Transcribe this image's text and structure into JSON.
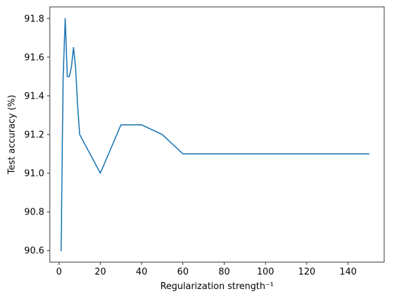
{
  "chart_data": {
    "type": "line",
    "xlabel": "Regularization strength⁻¹",
    "ylabel": "Test accuracy (%)",
    "xlim": [
      -4.5,
      157.5
    ],
    "ylim": [
      90.54,
      91.86
    ],
    "xticks": [
      0,
      20,
      40,
      60,
      80,
      100,
      120,
      140
    ],
    "yticks": [
      90.6,
      90.8,
      91.0,
      91.2,
      91.4,
      91.6,
      91.8
    ],
    "ytick_labels": [
      "90.6",
      "90.8",
      "91.0",
      "91.2",
      "91.4",
      "91.6",
      "91.8"
    ],
    "grid": false,
    "series": [
      {
        "color": "#1f77b4",
        "x": [
          1,
          2,
          3,
          4,
          5,
          6,
          7,
          8,
          9,
          10,
          20,
          30,
          40,
          50,
          60,
          70,
          80,
          90,
          100,
          110,
          120,
          130,
          140,
          150
        ],
        "y": [
          90.6,
          91.5,
          91.8,
          91.5,
          91.5,
          91.55,
          91.65,
          91.55,
          91.35,
          91.2,
          91.0,
          91.25,
          91.25,
          91.2,
          91.1,
          91.1,
          91.1,
          91.1,
          91.1,
          91.1,
          91.1,
          91.1,
          91.1,
          91.1
        ]
      }
    ]
  }
}
